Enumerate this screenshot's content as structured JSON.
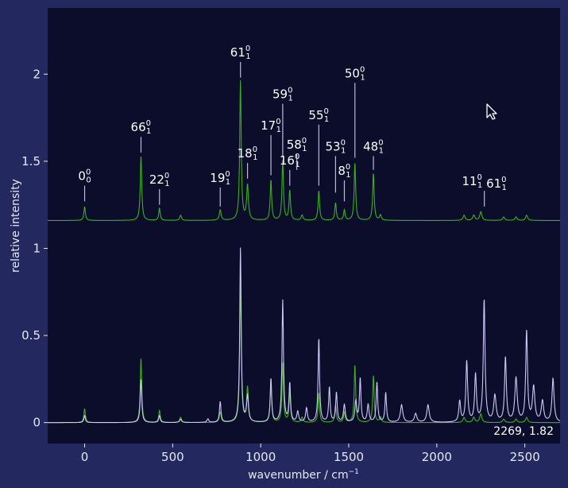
{
  "colors": {
    "background": "#23285e",
    "plot_background": "#0b0d2b",
    "green": "#3bb01c",
    "lavender": "#cdc8f4",
    "text": "#e6e8f4",
    "leader": "#b8bbd8"
  },
  "chart_data": {
    "type": "line",
    "xlabel": "wavenumber / cm",
    "xlabel_sup": "−1",
    "ylabel": "relative intensity",
    "xlim": [
      -210,
      2700
    ],
    "ylim": [
      -0.12,
      2.38
    ],
    "xticks": [
      0,
      500,
      1000,
      1500,
      2000,
      2500
    ],
    "yticks": [
      0,
      0.5,
      1,
      1.5,
      2
    ],
    "ytick_labels": [
      "0",
      "0.5",
      "1",
      "1.5",
      "2"
    ],
    "grid": false,
    "coordinate_readout": "2269, 1.82",
    "series": [
      {
        "color": "#3bb01c",
        "offset": 0,
        "peaks": [
          [
            0,
            0.08,
            5
          ],
          [
            320,
            0.37,
            5
          ],
          [
            425,
            0.07,
            5
          ],
          [
            545,
            0.03,
            6
          ],
          [
            770,
            0.06,
            6
          ],
          [
            885,
            0.8,
            5
          ],
          [
            925,
            0.2,
            6
          ],
          [
            1058,
            0.23,
            5
          ],
          [
            1125,
            0.34,
            5
          ],
          [
            1165,
            0.17,
            5
          ],
          [
            1235,
            0.03,
            6
          ],
          [
            1330,
            0.17,
            5
          ],
          [
            1425,
            0.1,
            5
          ],
          [
            1475,
            0.06,
            5
          ],
          [
            1535,
            0.33,
            5
          ],
          [
            1640,
            0.27,
            5
          ],
          [
            1680,
            0.03,
            6
          ],
          [
            2155,
            0.03,
            7
          ],
          [
            2210,
            0.03,
            7
          ],
          [
            2250,
            0.05,
            7
          ],
          [
            2380,
            0.02,
            7
          ],
          [
            2450,
            0.02,
            7
          ],
          [
            2510,
            0.03,
            7
          ]
        ]
      },
      {
        "color": "#cdc8f4",
        "offset": 0,
        "peaks": [
          [
            0,
            0.04,
            5
          ],
          [
            320,
            0.25,
            5
          ],
          [
            425,
            0.04,
            5
          ],
          [
            545,
            0.02,
            6
          ],
          [
            700,
            0.02,
            6
          ],
          [
            770,
            0.12,
            5
          ],
          [
            885,
            1.0,
            5
          ],
          [
            925,
            0.15,
            6
          ],
          [
            1058,
            0.25,
            5
          ],
          [
            1125,
            0.7,
            5
          ],
          [
            1165,
            0.22,
            5
          ],
          [
            1210,
            0.06,
            6
          ],
          [
            1260,
            0.08,
            6
          ],
          [
            1330,
            0.48,
            5
          ],
          [
            1390,
            0.2,
            5
          ],
          [
            1430,
            0.17,
            5
          ],
          [
            1475,
            0.1,
            6
          ],
          [
            1540,
            0.12,
            6
          ],
          [
            1565,
            0.25,
            5
          ],
          [
            1610,
            0.1,
            6
          ],
          [
            1660,
            0.23,
            5
          ],
          [
            1710,
            0.17,
            5
          ],
          [
            1800,
            0.1,
            8
          ],
          [
            1880,
            0.05,
            8
          ],
          [
            1950,
            0.1,
            8
          ],
          [
            2130,
            0.12,
            6
          ],
          [
            2170,
            0.35,
            6
          ],
          [
            2220,
            0.27,
            6
          ],
          [
            2269,
            0.7,
            6
          ],
          [
            2330,
            0.15,
            8
          ],
          [
            2390,
            0.37,
            6
          ],
          [
            2450,
            0.25,
            8
          ],
          [
            2510,
            0.52,
            6
          ],
          [
            2550,
            0.2,
            8
          ],
          [
            2600,
            0.12,
            8
          ],
          [
            2660,
            0.25,
            7
          ]
        ]
      },
      {
        "color": "#3bb01c",
        "offset": 1.16,
        "peaks": [
          [
            0,
            0.08,
            5
          ],
          [
            320,
            0.37,
            5
          ],
          [
            425,
            0.07,
            5
          ],
          [
            545,
            0.03,
            6
          ],
          [
            770,
            0.06,
            6
          ],
          [
            885,
            0.8,
            5
          ],
          [
            925,
            0.2,
            6
          ],
          [
            1058,
            0.23,
            5
          ],
          [
            1125,
            0.34,
            5
          ],
          [
            1165,
            0.17,
            5
          ],
          [
            1235,
            0.03,
            6
          ],
          [
            1330,
            0.17,
            5
          ],
          [
            1425,
            0.1,
            5
          ],
          [
            1475,
            0.06,
            5
          ],
          [
            1535,
            0.33,
            5
          ],
          [
            1640,
            0.27,
            5
          ],
          [
            1680,
            0.03,
            6
          ],
          [
            2155,
            0.03,
            7
          ],
          [
            2210,
            0.03,
            7
          ],
          [
            2250,
            0.05,
            7
          ],
          [
            2380,
            0.02,
            7
          ],
          [
            2450,
            0.02,
            7
          ],
          [
            2510,
            0.03,
            7
          ]
        ]
      }
    ],
    "annotations": [
      {
        "base": "0",
        "sub": "0",
        "sup": "0",
        "x": 0,
        "y_top": 1.27,
        "y_bottom": 1.36
      },
      {
        "base": "66",
        "sub": "1",
        "sup": "0",
        "x": 320,
        "y_top": 1.55,
        "y_bottom": 1.64
      },
      {
        "base": "22",
        "sub": "1",
        "sup": "0",
        "x": 425,
        "y_top": 1.25,
        "y_bottom": 1.34
      },
      {
        "base": "19",
        "sub": "1",
        "sup": "0",
        "x": 770,
        "y_top": 1.24,
        "y_bottom": 1.35
      },
      {
        "base": "61",
        "sub": "1",
        "sup": "0",
        "x": 885,
        "y_top": 1.98,
        "y_bottom": 2.07
      },
      {
        "base": "18",
        "sub": "1",
        "sup": "0",
        "x": 925,
        "y_top": 1.4,
        "y_bottom": 1.49
      },
      {
        "base": "17",
        "sub": "1",
        "sup": "0",
        "x": 1058,
        "y_top": 1.42,
        "y_bottom": 1.65
      },
      {
        "base": "59",
        "sub": "1",
        "sup": "0",
        "x": 1125,
        "y_top": 1.53,
        "y_bottom": 1.83
      },
      {
        "base": "16",
        "sub": "1",
        "sup": "0",
        "x": 1165,
        "y_top": 1.36,
        "y_bottom": 1.45
      },
      {
        "base": "58",
        "sub": "1",
        "sup": "0",
        "x": 1205,
        "y_top": 1.45,
        "y_bottom": 1.54
      },
      {
        "base": "55",
        "sub": "1",
        "sup": "0",
        "x": 1330,
        "y_top": 1.36,
        "y_bottom": 1.71
      },
      {
        "base": "53",
        "sub": "1",
        "sup": "0",
        "x": 1425,
        "y_top": 1.32,
        "y_bottom": 1.53
      },
      {
        "base": "8",
        "sub": "1",
        "sup": "0",
        "x": 1475,
        "y_top": 1.27,
        "y_bottom": 1.39
      },
      {
        "base": "50",
        "sub": "1",
        "sup": "0",
        "x": 1535,
        "y_top": 1.52,
        "y_bottom": 1.95
      },
      {
        "base": "48",
        "sub": "1",
        "sup": "0",
        "x": 1640,
        "y_top": 1.45,
        "y_bottom": 1.53
      },
      {
        "base": "11",
        "sub": "1",
        "sup": "0",
        "x": 2270,
        "y_top": 1.24,
        "y_bottom": 1.33,
        "extra_base": "61",
        "extra_sub": "1",
        "extra_sup": "0"
      }
    ]
  }
}
